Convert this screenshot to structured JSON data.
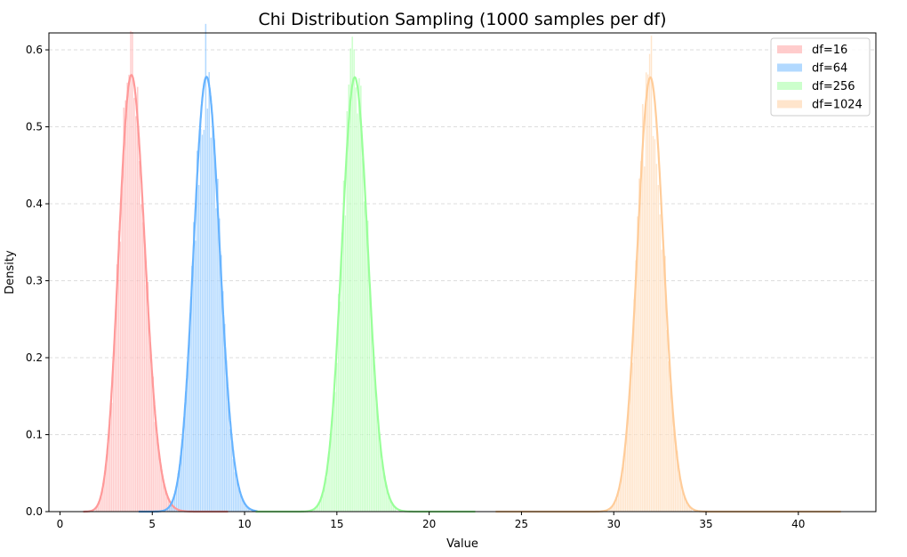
{
  "chart_data": {
    "type": "histogram+line",
    "title": "Chi Distribution Sampling (1000 samples per df)",
    "xlabel": "Value",
    "ylabel": "Density",
    "xlim": [
      -0.6,
      44.2
    ],
    "ylim": [
      0,
      0.622
    ],
    "xticks": [
      0,
      5,
      10,
      15,
      20,
      25,
      30,
      35,
      40
    ],
    "xtick_labels": [
      "0",
      "5",
      "10",
      "15",
      "20",
      "25",
      "30",
      "35",
      "40"
    ],
    "yticks": [
      0.0,
      0.1,
      0.2,
      0.3,
      0.4,
      0.5,
      0.6
    ],
    "ytick_labels": [
      "0.0",
      "0.1",
      "0.2",
      "0.3",
      "0.4",
      "0.5",
      "0.6"
    ],
    "grid": "horizontal dashed",
    "legend_position": "top-right",
    "samples_per_df": 1000,
    "series": [
      {
        "name": "df=16",
        "df": 16,
        "color": "#ff9999",
        "pdf_x_range": [
          1.26,
          9.1
        ],
        "hist_bins": 60,
        "peak_density": 0.565
      },
      {
        "name": "df=64",
        "df": 64,
        "color": "#66b3ff",
        "pdf_x_range": [
          4.26,
          10.7
        ],
        "hist_bins": 60,
        "peak_density": 0.565
      },
      {
        "name": "df=256",
        "df": 256,
        "color": "#99ff99",
        "pdf_x_range": [
          10.6,
          22.5
        ],
        "hist_bins": 60,
        "peak_density": 0.565
      },
      {
        "name": "df=1024",
        "df": 1024,
        "color": "#ffcc99",
        "pdf_x_range": [
          23.6,
          42.3
        ],
        "hist_bins": 60,
        "peak_density": 0.565
      }
    ]
  }
}
